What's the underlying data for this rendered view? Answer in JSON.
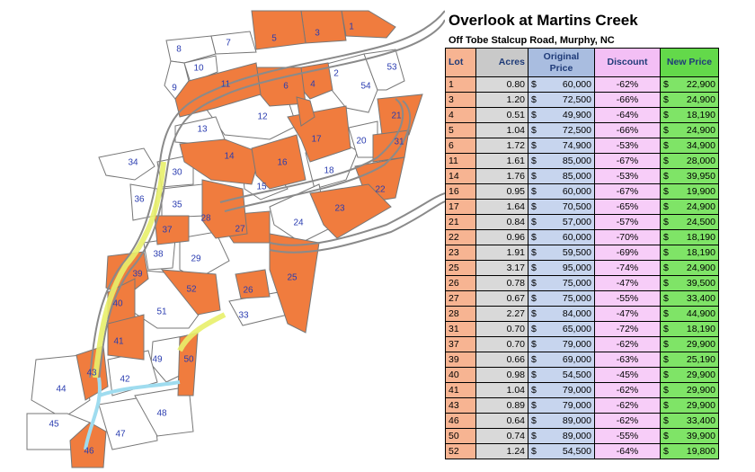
{
  "title": "Overlook at Martins Creek",
  "subtitle": "Off Tobe Stalcup Road, Murphy, NC",
  "headers": {
    "lot": "Lot",
    "acres": "Acres",
    "original": "Original Price",
    "discount": "Discount",
    "new": "New Price"
  },
  "currency_symbol": "$",
  "rows": [
    {
      "lot": "1",
      "acres": "0.80",
      "orig": "60,000",
      "disc": "-62%",
      "new": "22,900"
    },
    {
      "lot": "3",
      "acres": "1.20",
      "orig": "72,500",
      "disc": "-66%",
      "new": "24,900"
    },
    {
      "lot": "4",
      "acres": "0.51",
      "orig": "49,900",
      "disc": "-64%",
      "new": "18,190"
    },
    {
      "lot": "5",
      "acres": "1.04",
      "orig": "72,500",
      "disc": "-66%",
      "new": "24,900"
    },
    {
      "lot": "6",
      "acres": "1.72",
      "orig": "74,900",
      "disc": "-53%",
      "new": "34,900"
    },
    {
      "lot": "11",
      "acres": "1.61",
      "orig": "85,000",
      "disc": "-67%",
      "new": "28,000"
    },
    {
      "lot": "14",
      "acres": "1.76",
      "orig": "85,000",
      "disc": "-53%",
      "new": "39,950"
    },
    {
      "lot": "16",
      "acres": "0.95",
      "orig": "60,000",
      "disc": "-67%",
      "new": "19,900"
    },
    {
      "lot": "17",
      "acres": "1.64",
      "orig": "70,500",
      "disc": "-65%",
      "new": "24,900"
    },
    {
      "lot": "21",
      "acres": "0.84",
      "orig": "57,000",
      "disc": "-57%",
      "new": "24,500"
    },
    {
      "lot": "22",
      "acres": "0.96",
      "orig": "60,000",
      "disc": "-70%",
      "new": "18,190"
    },
    {
      "lot": "23",
      "acres": "1.91",
      "orig": "59,500",
      "disc": "-69%",
      "new": "18,190"
    },
    {
      "lot": "25",
      "acres": "3.17",
      "orig": "95,000",
      "disc": "-74%",
      "new": "24,900"
    },
    {
      "lot": "26",
      "acres": "0.78",
      "orig": "75,000",
      "disc": "-47%",
      "new": "39,500"
    },
    {
      "lot": "27",
      "acres": "0.67",
      "orig": "75,000",
      "disc": "-55%",
      "new": "33,400"
    },
    {
      "lot": "28",
      "acres": "2.27",
      "orig": "84,000",
      "disc": "-47%",
      "new": "44,900"
    },
    {
      "lot": "31",
      "acres": "0.70",
      "orig": "65,000",
      "disc": "-72%",
      "new": "18,190"
    },
    {
      "lot": "37",
      "acres": "0.70",
      "orig": "79,000",
      "disc": "-62%",
      "new": "29,900"
    },
    {
      "lot": "39",
      "acres": "0.66",
      "orig": "69,000",
      "disc": "-63%",
      "new": "25,190"
    },
    {
      "lot": "40",
      "acres": "0.98",
      "orig": "54,500",
      "disc": "-45%",
      "new": "29,900"
    },
    {
      "lot": "41",
      "acres": "1.04",
      "orig": "79,000",
      "disc": "-62%",
      "new": "29,900"
    },
    {
      "lot": "43",
      "acres": "0.89",
      "orig": "79,000",
      "disc": "-62%",
      "new": "29,900"
    },
    {
      "lot": "46",
      "acres": "0.64",
      "orig": "89,000",
      "disc": "-62%",
      "new": "33,400"
    },
    {
      "lot": "50",
      "acres": "0.74",
      "orig": "89,000",
      "disc": "-55%",
      "new": "39,900"
    },
    {
      "lot": "52",
      "acres": "1.24",
      "orig": "54,500",
      "disc": "-64%",
      "new": "19,800"
    }
  ],
  "map": {
    "lot_fill_available": "#f07c3e",
    "lot_fill_other": "#ffffff",
    "road_color": "#8a8a8a",
    "highlight_color": "#e8f06a",
    "creek_color": "#9fdcef",
    "lot_labels": [
      "1",
      "2",
      "3",
      "4",
      "5",
      "6",
      "7",
      "8",
      "9",
      "10",
      "11",
      "12",
      "13",
      "14",
      "15",
      "16",
      "17",
      "18",
      "20",
      "21",
      "22",
      "23",
      "24",
      "25",
      "26",
      "27",
      "28",
      "29",
      "30",
      "31",
      "33",
      "34",
      "35",
      "36",
      "37",
      "38",
      "39",
      "40",
      "41",
      "42",
      "43",
      "44",
      "45",
      "46",
      "47",
      "48",
      "49",
      "50",
      "51",
      "52",
      "53",
      "54"
    ]
  }
}
